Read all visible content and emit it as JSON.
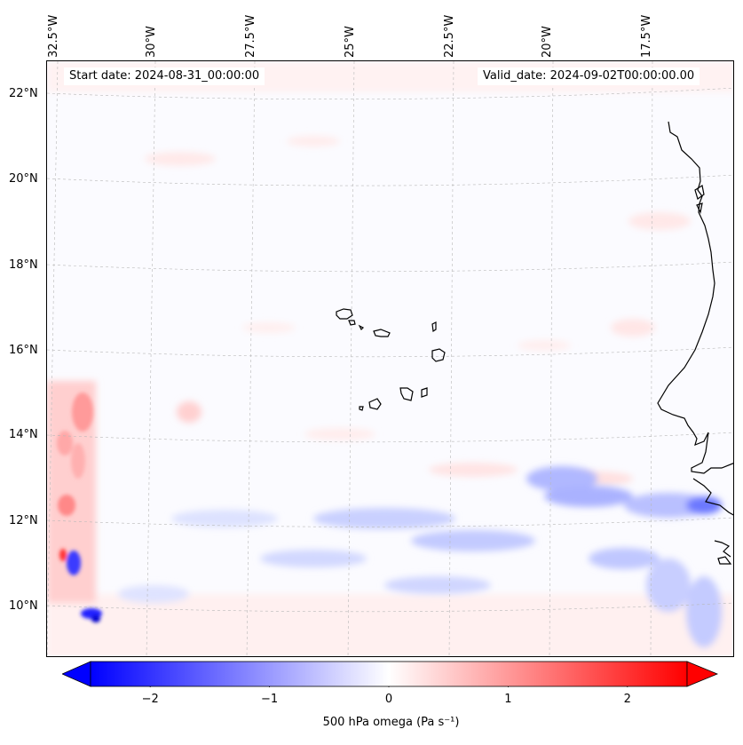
{
  "map": {
    "start_label": "Start date: 2024-08-31_00:00:00",
    "valid_label": "Valid_date: 2024-09-02T00:00:00.00",
    "lon_labels": [
      "32.5°W",
      "30°W",
      "27.5°W",
      "25°W",
      "22.5°W",
      "20°W",
      "17.5°W"
    ],
    "lat_labels": [
      "22°N",
      "20°N",
      "18°N",
      "16°N",
      "14°N",
      "12°N",
      "10°N"
    ],
    "colors": {
      "neg": "#0000ff",
      "zero": "#ffffff",
      "pos": "#ff0000",
      "coast": "#000000",
      "grid": "#b0b0b0"
    }
  },
  "colorbar": {
    "ticks": [
      "−2",
      "−1",
      "0",
      "1",
      "2"
    ],
    "tick_values": [
      -2,
      -1,
      0,
      1,
      2
    ],
    "range": [
      -2.5,
      2.5
    ],
    "label": "500 hPa omega (Pa s⁻¹)"
  }
}
